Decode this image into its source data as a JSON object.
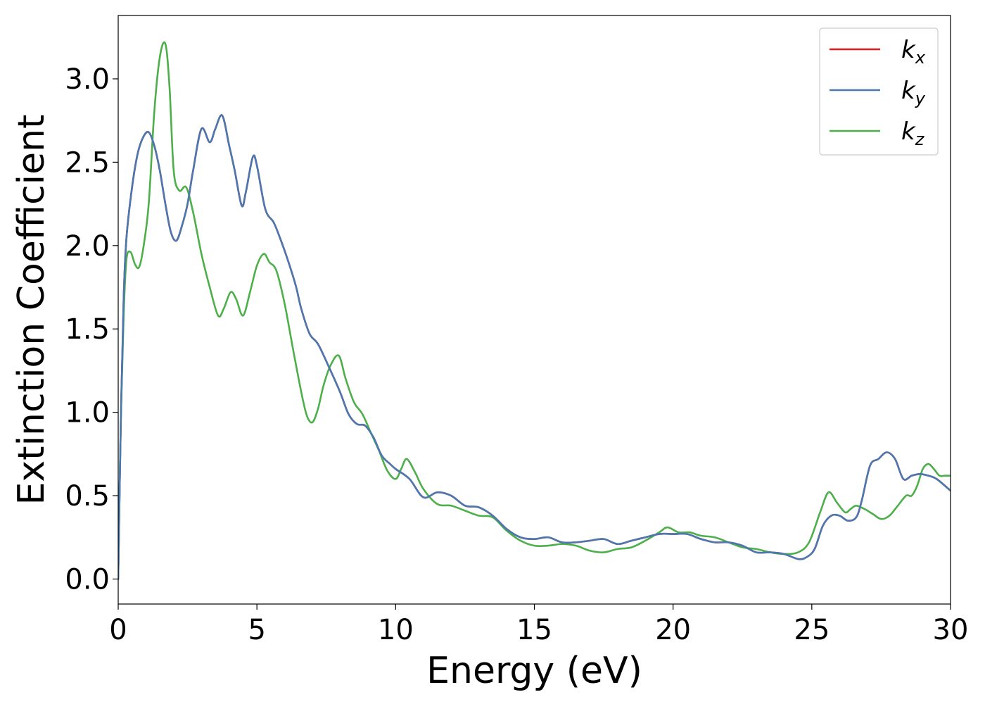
{
  "chart_data": {
    "type": "line",
    "title": "",
    "xlabel": "Energy (eV)",
    "ylabel": "Extinction Coefficient",
    "xlim": [
      0,
      30
    ],
    "ylim": [
      -0.15,
      3.38
    ],
    "xticks": [
      0,
      5,
      10,
      15,
      20,
      25,
      30
    ],
    "xtick_labels": [
      "0",
      "5",
      "10",
      "15",
      "20",
      "25",
      "30"
    ],
    "yticks": [
      0.0,
      0.5,
      1.0,
      1.5,
      2.0,
      2.5,
      3.0
    ],
    "ytick_labels": [
      "0.0",
      "0.5",
      "1.0",
      "1.5",
      "2.0",
      "2.5",
      "3.0"
    ],
    "grid": false,
    "legend_position": "top-right",
    "series": [
      {
        "name": "k",
        "subscript": "x",
        "color": "#e41a1c",
        "x": [
          0.0,
          0.1,
          0.2,
          0.3,
          0.5,
          0.7,
          0.9,
          1.1,
          1.3,
          1.5,
          1.7,
          1.9,
          2.1,
          2.3,
          2.5,
          2.7,
          3.0,
          3.3,
          3.5,
          3.75,
          4.0,
          4.2,
          4.45,
          4.6,
          4.85,
          5.0,
          5.3,
          5.6,
          5.8,
          6.1,
          6.4,
          6.6,
          6.9,
          7.2,
          7.6,
          8.0,
          8.3,
          8.6,
          8.9,
          9.2,
          9.5,
          9.8,
          10.0,
          10.5,
          11.0,
          11.5,
          12.0,
          12.5,
          13.0,
          13.5,
          14.0,
          14.5,
          15.0,
          15.5,
          16.0,
          16.5,
          17.0,
          17.5,
          18.0,
          18.5,
          19.0,
          19.5,
          20.0,
          20.5,
          21.0,
          21.5,
          22.0,
          22.5,
          23.0,
          23.5,
          24.0,
          24.5,
          24.8,
          25.1,
          25.4,
          25.7,
          26.0,
          26.3,
          26.6,
          26.8,
          27.1,
          27.4,
          27.7,
          28.0,
          28.3,
          28.6,
          28.9,
          29.2,
          29.5,
          30.0
        ],
        "values": [
          0.0,
          1.0,
          1.7,
          2.05,
          2.35,
          2.55,
          2.65,
          2.68,
          2.6,
          2.45,
          2.25,
          2.08,
          2.03,
          2.12,
          2.25,
          2.45,
          2.7,
          2.62,
          2.7,
          2.78,
          2.6,
          2.45,
          2.24,
          2.32,
          2.53,
          2.48,
          2.22,
          2.14,
          2.06,
          1.92,
          1.76,
          1.62,
          1.47,
          1.41,
          1.27,
          1.12,
          0.99,
          0.93,
          0.92,
          0.85,
          0.74,
          0.69,
          0.66,
          0.6,
          0.49,
          0.52,
          0.5,
          0.44,
          0.43,
          0.38,
          0.3,
          0.25,
          0.24,
          0.25,
          0.22,
          0.22,
          0.23,
          0.24,
          0.21,
          0.23,
          0.25,
          0.27,
          0.27,
          0.27,
          0.24,
          0.22,
          0.22,
          0.2,
          0.16,
          0.16,
          0.15,
          0.12,
          0.13,
          0.18,
          0.32,
          0.38,
          0.38,
          0.35,
          0.37,
          0.47,
          0.68,
          0.72,
          0.76,
          0.72,
          0.6,
          0.62,
          0.63,
          0.62,
          0.6,
          0.53
        ]
      },
      {
        "name": "k",
        "subscript": "y",
        "color": "#4a78b0",
        "x": [
          0.0,
          0.1,
          0.2,
          0.3,
          0.5,
          0.7,
          0.9,
          1.1,
          1.3,
          1.5,
          1.7,
          1.9,
          2.1,
          2.3,
          2.5,
          2.7,
          3.0,
          3.3,
          3.5,
          3.75,
          4.0,
          4.2,
          4.45,
          4.6,
          4.85,
          5.0,
          5.3,
          5.6,
          5.8,
          6.1,
          6.4,
          6.6,
          6.9,
          7.2,
          7.6,
          8.0,
          8.3,
          8.6,
          8.9,
          9.2,
          9.5,
          9.8,
          10.0,
          10.5,
          11.0,
          11.5,
          12.0,
          12.5,
          13.0,
          13.5,
          14.0,
          14.5,
          15.0,
          15.5,
          16.0,
          16.5,
          17.0,
          17.5,
          18.0,
          18.5,
          19.0,
          19.5,
          20.0,
          20.5,
          21.0,
          21.5,
          22.0,
          22.5,
          23.0,
          23.5,
          24.0,
          24.5,
          24.8,
          25.1,
          25.4,
          25.7,
          26.0,
          26.3,
          26.6,
          26.8,
          27.1,
          27.4,
          27.7,
          28.0,
          28.3,
          28.6,
          28.9,
          29.2,
          29.5,
          30.0
        ],
        "values": [
          0.0,
          1.0,
          1.7,
          2.05,
          2.35,
          2.55,
          2.65,
          2.68,
          2.6,
          2.45,
          2.25,
          2.08,
          2.03,
          2.12,
          2.25,
          2.45,
          2.7,
          2.62,
          2.7,
          2.78,
          2.6,
          2.45,
          2.24,
          2.32,
          2.53,
          2.48,
          2.22,
          2.14,
          2.06,
          1.92,
          1.76,
          1.62,
          1.47,
          1.41,
          1.27,
          1.12,
          0.99,
          0.93,
          0.92,
          0.85,
          0.74,
          0.69,
          0.66,
          0.6,
          0.49,
          0.52,
          0.5,
          0.44,
          0.43,
          0.38,
          0.3,
          0.25,
          0.24,
          0.25,
          0.22,
          0.22,
          0.23,
          0.24,
          0.21,
          0.23,
          0.25,
          0.27,
          0.27,
          0.27,
          0.24,
          0.22,
          0.22,
          0.2,
          0.16,
          0.16,
          0.15,
          0.12,
          0.13,
          0.18,
          0.32,
          0.38,
          0.38,
          0.35,
          0.37,
          0.47,
          0.68,
          0.72,
          0.76,
          0.72,
          0.6,
          0.62,
          0.63,
          0.62,
          0.6,
          0.53
        ]
      },
      {
        "name": "k",
        "subscript": "z",
        "color": "#4daf4a",
        "x": [
          0.0,
          0.1,
          0.2,
          0.3,
          0.45,
          0.6,
          0.75,
          0.9,
          1.1,
          1.3,
          1.5,
          1.7,
          1.85,
          2.0,
          2.2,
          2.45,
          2.7,
          3.0,
          3.3,
          3.6,
          3.8,
          4.05,
          4.25,
          4.5,
          4.75,
          5.0,
          5.25,
          5.45,
          5.7,
          6.0,
          6.3,
          6.6,
          6.8,
          7.0,
          7.2,
          7.4,
          7.65,
          7.95,
          8.2,
          8.5,
          8.8,
          9.1,
          9.4,
          9.7,
          10.0,
          10.2,
          10.4,
          10.7,
          11.0,
          11.5,
          12.0,
          12.5,
          13.0,
          13.5,
          14.0,
          14.5,
          15.0,
          15.5,
          16.0,
          16.5,
          17.0,
          17.5,
          18.0,
          18.5,
          19.0,
          19.5,
          19.8,
          20.2,
          20.6,
          21.0,
          21.5,
          22.0,
          22.5,
          23.0,
          23.5,
          24.0,
          24.5,
          24.9,
          25.3,
          25.6,
          25.9,
          26.2,
          26.4,
          26.6,
          26.9,
          27.2,
          27.5,
          27.8,
          28.1,
          28.4,
          28.6,
          28.8,
          29.0,
          29.2,
          29.4,
          29.6,
          29.8,
          30.0
        ],
        "values": [
          0.0,
          1.0,
          1.6,
          1.92,
          1.96,
          1.89,
          1.87,
          1.98,
          2.25,
          2.8,
          3.13,
          3.21,
          2.95,
          2.45,
          2.33,
          2.35,
          2.2,
          1.95,
          1.75,
          1.58,
          1.62,
          1.72,
          1.68,
          1.58,
          1.72,
          1.88,
          1.95,
          1.9,
          1.85,
          1.65,
          1.38,
          1.12,
          0.98,
          0.94,
          1.02,
          1.16,
          1.28,
          1.34,
          1.2,
          1.06,
          0.99,
          0.88,
          0.77,
          0.65,
          0.6,
          0.66,
          0.72,
          0.64,
          0.54,
          0.45,
          0.44,
          0.41,
          0.38,
          0.37,
          0.29,
          0.23,
          0.2,
          0.2,
          0.21,
          0.2,
          0.17,
          0.16,
          0.18,
          0.19,
          0.23,
          0.28,
          0.31,
          0.28,
          0.28,
          0.26,
          0.25,
          0.22,
          0.19,
          0.18,
          0.16,
          0.15,
          0.16,
          0.22,
          0.4,
          0.52,
          0.46,
          0.4,
          0.42,
          0.44,
          0.42,
          0.39,
          0.36,
          0.38,
          0.44,
          0.5,
          0.5,
          0.56,
          0.66,
          0.69,
          0.66,
          0.62,
          0.62,
          0.62
        ]
      }
    ]
  }
}
